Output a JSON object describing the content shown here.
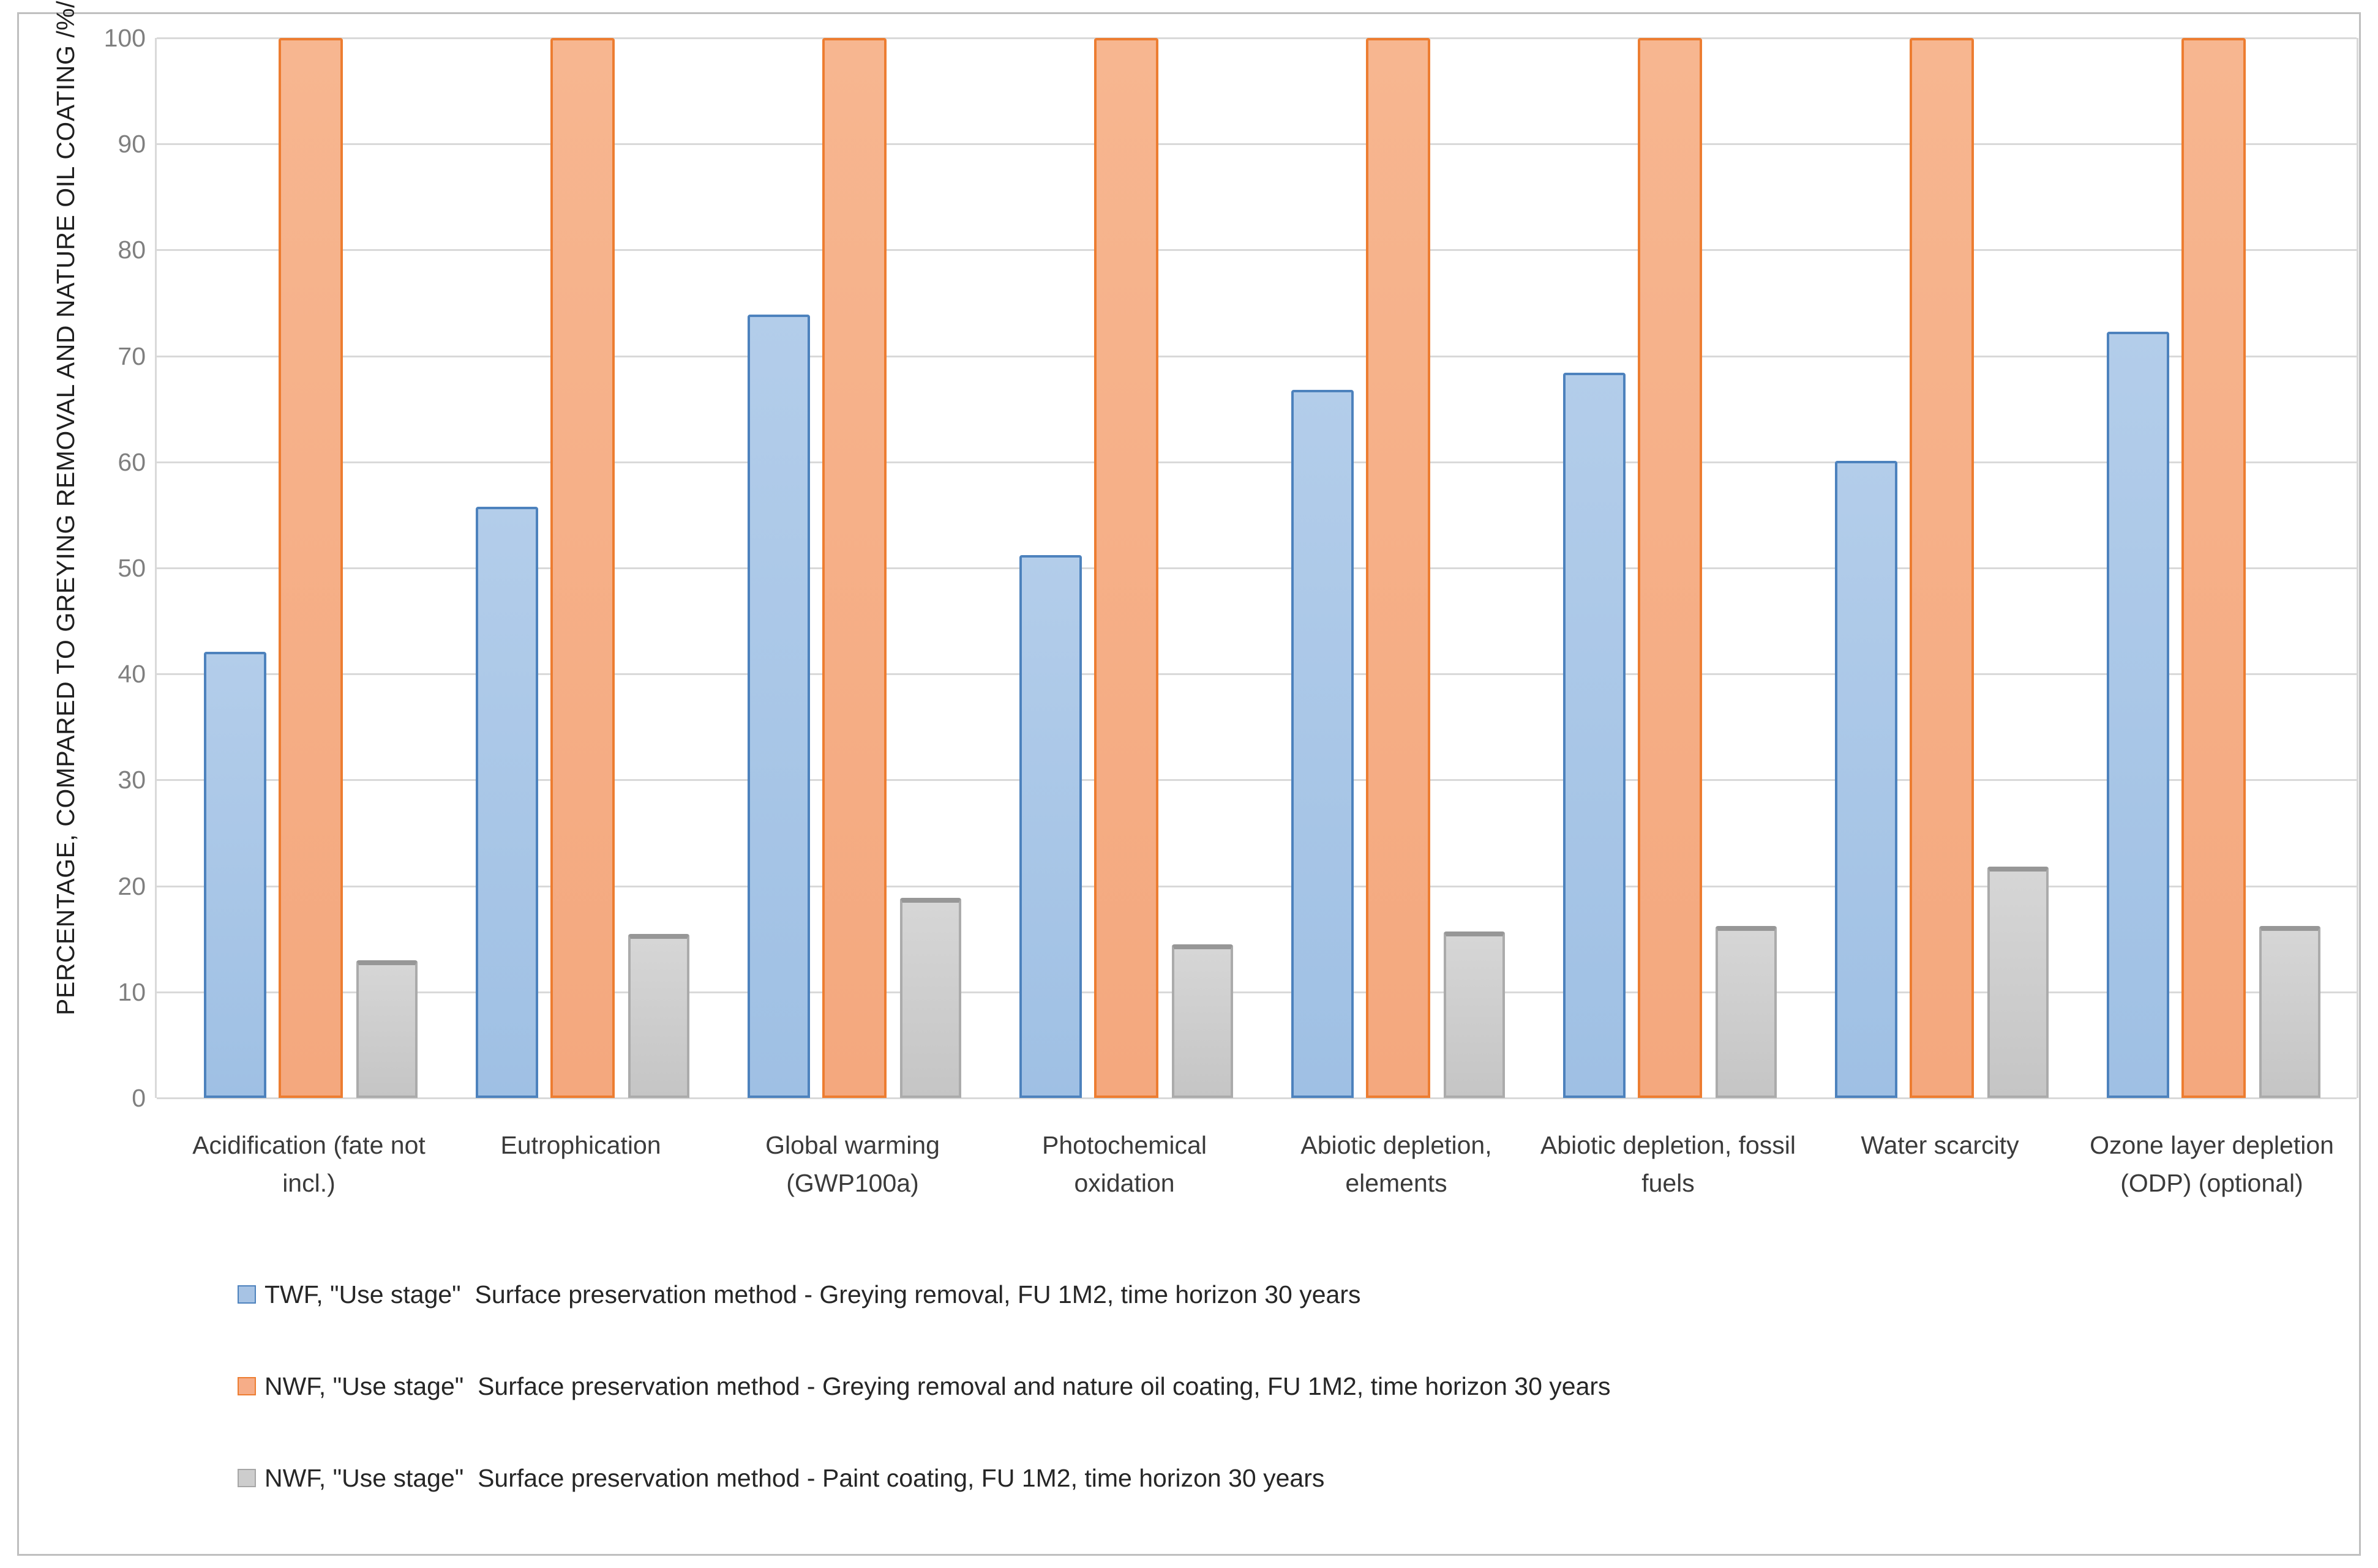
{
  "chart_data": {
    "type": "bar",
    "title": "",
    "xlabel": "",
    "ylabel": "PERCENTAGE, COMPARED TO GREYING REMOVAL AND NATURE OIL COATING /%/",
    "ylim": [
      0,
      100
    ],
    "yticks": [
      0,
      10,
      20,
      30,
      40,
      50,
      60,
      70,
      80,
      90,
      100
    ],
    "grid": true,
    "legend_position": "bottom",
    "categories": [
      "Acidification (fate not incl.)",
      "Eutrophication",
      "Global warming (GWP100a)",
      "Photochemical oxidation",
      "Abiotic depletion, elements",
      "Abiotic depletion, fossil fuels",
      "Water scarcity",
      "Ozone layer depletion (ODP) (optional)"
    ],
    "category_lines": [
      [
        "Acidification (fate not",
        "incl.)"
      ],
      [
        "Eutrophication"
      ],
      [
        "Global warming",
        "(GWP100a)"
      ],
      [
        "Photochemical",
        "oxidation"
      ],
      [
        "Abiotic depletion,",
        "elements"
      ],
      [
        "Abiotic depletion, fossil",
        "fuels"
      ],
      [
        "Water scarcity"
      ],
      [
        "Ozone layer depletion",
        "(ODP) (optional)"
      ]
    ],
    "series": [
      {
        "name": "TWF, \"Use stage\"  Surface preservation method - Greying removal, FU 1M2, time horizon 30 years",
        "fill_color": "#a7c3e4",
        "border_color": "#4d82bd",
        "values": [
          42.1,
          55.8,
          73.9,
          51.2,
          66.8,
          68.4,
          60.1,
          72.3
        ]
      },
      {
        "name": "NWF, \"Use stage\"  Surface preservation method - Greying removal and nature oil coating, FU 1M2, time horizon 30 years",
        "fill_color": "#f6ad88",
        "border_color": "#ed7d31",
        "values": [
          100,
          100,
          100,
          100,
          100,
          100,
          100,
          100
        ]
      },
      {
        "name": "NWF, \"Use stage\"  Surface preservation method - Paint coating, FU 1M2, time horizon 30 years",
        "fill_color": "#cdcdcd",
        "border_color": "#a6a6a6",
        "values": [
          13.0,
          15.5,
          18.9,
          14.5,
          15.7,
          16.2,
          21.8,
          16.2
        ]
      }
    ]
  }
}
